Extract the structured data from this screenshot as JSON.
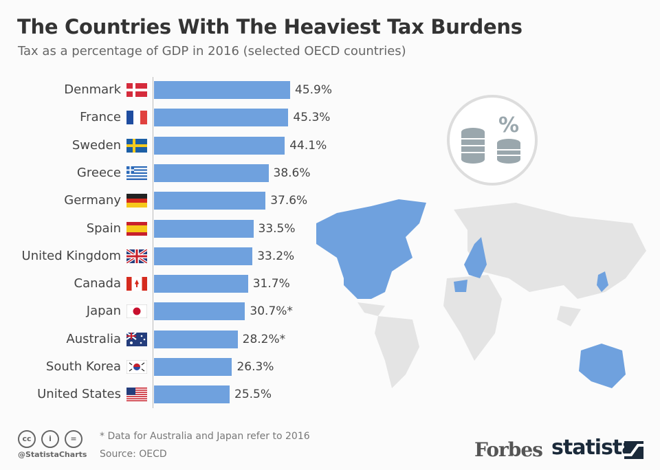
{
  "title": "The Countries With The Heaviest Tax Burdens",
  "subtitle": "Tax as a percentage of GDP in 2016 (selected OECD countries)",
  "chart_data": {
    "type": "bar",
    "orientation": "horizontal",
    "categories": [
      "Denmark",
      "France",
      "Sweden",
      "Greece",
      "Germany",
      "Spain",
      "United Kingdom",
      "Canada",
      "Japan",
      "Australia",
      "South Korea",
      "United States"
    ],
    "values": [
      45.9,
      45.3,
      44.1,
      38.6,
      37.6,
      33.5,
      33.2,
      31.7,
      30.7,
      28.2,
      26.3,
      25.5
    ],
    "value_labels": [
      "45.9%",
      "45.3%",
      "44.1%",
      "38.6%",
      "37.6%",
      "33.5%",
      "33.2%",
      "31.7%",
      "30.7%*",
      "28.2%*",
      "26.3%",
      "25.5%"
    ],
    "bar_color": "#6fa1de",
    "grid": false
  },
  "footer": {
    "note": "* Data for Australia and Japan refer to 2016",
    "source": "Source: OECD",
    "handle": "@StatistaCharts",
    "cc_icons": [
      "cc",
      "by",
      "nd"
    ],
    "forbes": "Forbes",
    "statista": "statista"
  }
}
